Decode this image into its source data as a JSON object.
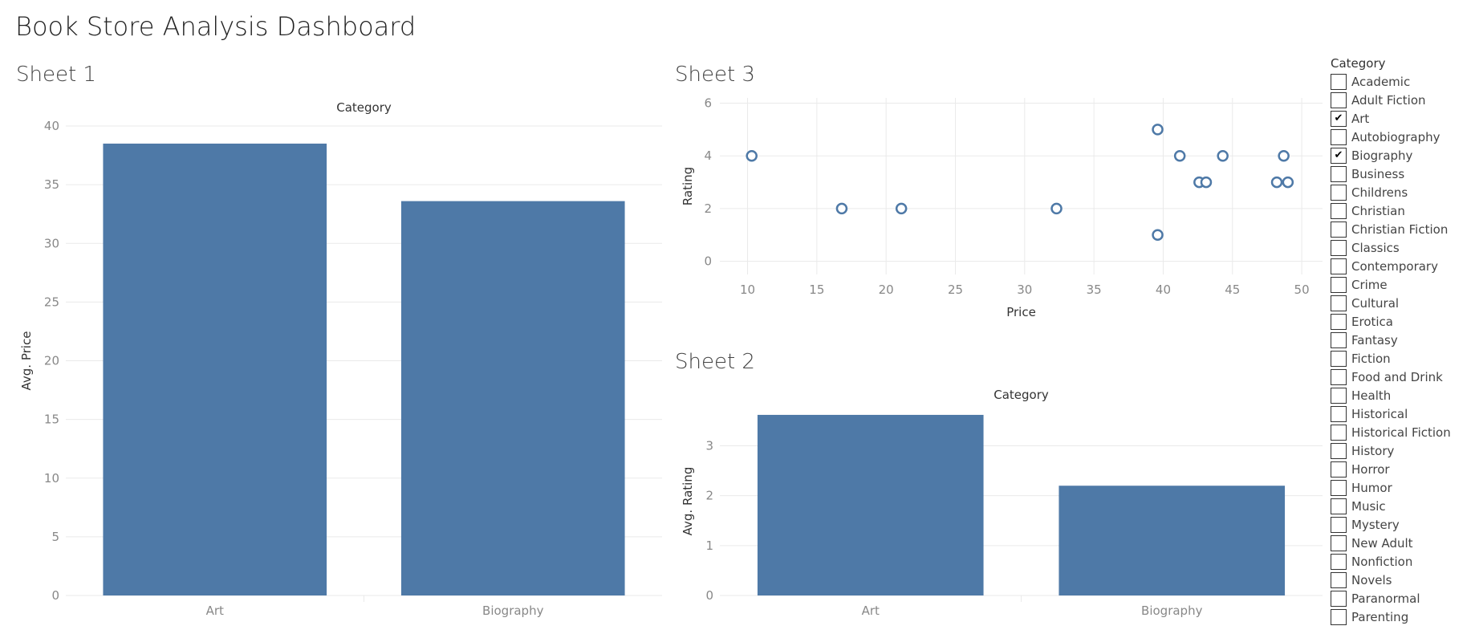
{
  "dashboard": {
    "title": "Book Store Analysis Dashboard"
  },
  "colors": {
    "bar": "#4e79a7",
    "grid": "#eaeaea"
  },
  "chart_data": [
    {
      "id": "sheet1",
      "title": "Sheet 1",
      "type": "bar",
      "header": "Category",
      "categories": [
        "Art",
        "Biography"
      ],
      "values": [
        38.5,
        33.6
      ],
      "ylabel": "Avg. Price",
      "ylim": [
        0,
        40
      ],
      "yticks": [
        0,
        5,
        10,
        15,
        20,
        25,
        30,
        35,
        40
      ]
    },
    {
      "id": "sheet3",
      "title": "Sheet 3",
      "type": "scatter",
      "xlabel": "Price",
      "ylabel": "Rating",
      "xlim": [
        8,
        51.5
      ],
      "ylim": [
        -0.5,
        6.2
      ],
      "xticks": [
        10,
        15,
        20,
        25,
        30,
        35,
        40,
        45,
        50
      ],
      "yticks": [
        0,
        2,
        4,
        6
      ],
      "points": [
        {
          "x": 10.3,
          "y": 4
        },
        {
          "x": 16.8,
          "y": 2
        },
        {
          "x": 21.1,
          "y": 2
        },
        {
          "x": 32.3,
          "y": 2
        },
        {
          "x": 39.6,
          "y": 5
        },
        {
          "x": 39.6,
          "y": 1
        },
        {
          "x": 41.2,
          "y": 4
        },
        {
          "x": 42.6,
          "y": 3
        },
        {
          "x": 43.1,
          "y": 3
        },
        {
          "x": 44.3,
          "y": 4
        },
        {
          "x": 48.2,
          "y": 3
        },
        {
          "x": 48.7,
          "y": 4
        },
        {
          "x": 49.0,
          "y": 3
        }
      ]
    },
    {
      "id": "sheet2",
      "title": "Sheet 2",
      "type": "bar",
      "header": "Category",
      "categories": [
        "Art",
        "Biography"
      ],
      "values": [
        3.62,
        2.2
      ],
      "ylabel": "Avg. Rating",
      "ylim": [
        0,
        3.78
      ],
      "yticks": [
        0,
        1,
        2,
        3
      ]
    }
  ],
  "filter": {
    "title": "Category",
    "items": [
      {
        "label": "Academic",
        "checked": false
      },
      {
        "label": "Adult Fiction",
        "checked": false
      },
      {
        "label": "Art",
        "checked": true
      },
      {
        "label": "Autobiography",
        "checked": false
      },
      {
        "label": "Biography",
        "checked": true
      },
      {
        "label": "Business",
        "checked": false
      },
      {
        "label": "Childrens",
        "checked": false
      },
      {
        "label": "Christian",
        "checked": false
      },
      {
        "label": "Christian Fiction",
        "checked": false
      },
      {
        "label": "Classics",
        "checked": false
      },
      {
        "label": "Contemporary",
        "checked": false
      },
      {
        "label": "Crime",
        "checked": false
      },
      {
        "label": "Cultural",
        "checked": false
      },
      {
        "label": "Erotica",
        "checked": false
      },
      {
        "label": "Fantasy",
        "checked": false
      },
      {
        "label": "Fiction",
        "checked": false
      },
      {
        "label": "Food and Drink",
        "checked": false
      },
      {
        "label": "Health",
        "checked": false
      },
      {
        "label": "Historical",
        "checked": false
      },
      {
        "label": "Historical Fiction",
        "checked": false
      },
      {
        "label": "History",
        "checked": false
      },
      {
        "label": "Horror",
        "checked": false
      },
      {
        "label": "Humor",
        "checked": false
      },
      {
        "label": "Music",
        "checked": false
      },
      {
        "label": "Mystery",
        "checked": false
      },
      {
        "label": "New Adult",
        "checked": false
      },
      {
        "label": "Nonfiction",
        "checked": false
      },
      {
        "label": "Novels",
        "checked": false
      },
      {
        "label": "Paranormal",
        "checked": false
      },
      {
        "label": "Parenting",
        "checked": false
      }
    ]
  }
}
